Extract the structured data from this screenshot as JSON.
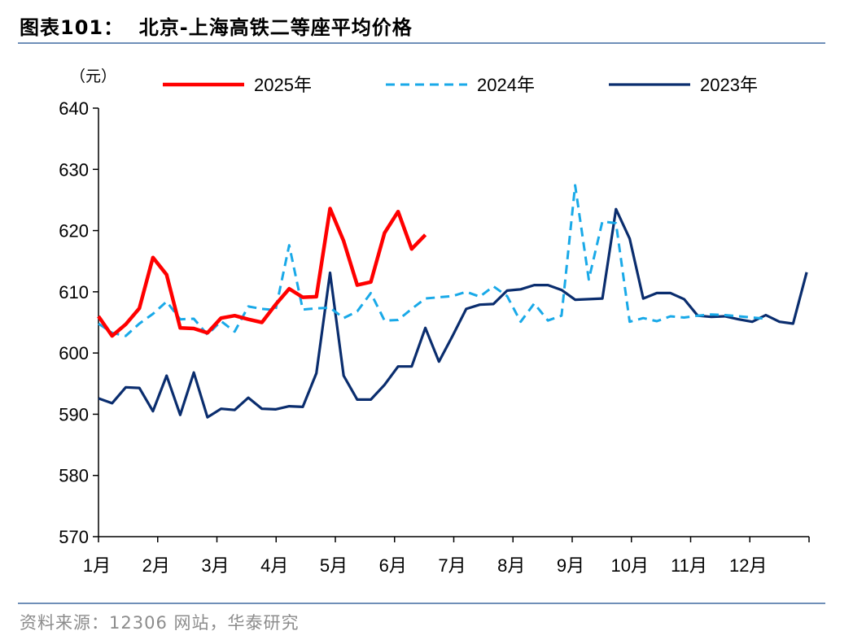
{
  "figure": {
    "title": "图表101：  北京-上海高铁二等座平均价格",
    "source": "资料来源：12306 网站，华泰研究"
  },
  "chart_data": {
    "type": "line",
    "unit_label": "（元）",
    "ylim": [
      570,
      640
    ],
    "yticks": [
      570,
      580,
      590,
      600,
      610,
      620,
      630,
      640
    ],
    "xlim": [
      0,
      12
    ],
    "x_ticks": [
      0,
      1,
      2,
      3,
      4,
      5,
      6,
      7,
      8,
      9,
      10,
      11,
      12
    ],
    "x_tick_labels": [
      "1月",
      "2月",
      "3月",
      "4月",
      "5月",
      "6月",
      "7月",
      "8月",
      "9月",
      "10月",
      "11月",
      "12月"
    ],
    "grid": false,
    "legend_position": "top",
    "series": [
      {
        "name": "2025年",
        "color": "#ff0000",
        "style": "solid",
        "x": [
          0.0,
          0.23,
          0.46,
          0.69,
          0.92,
          1.15,
          1.38,
          1.61,
          1.84,
          2.07,
          2.3,
          2.53,
          2.76,
          2.99,
          3.22,
          3.45,
          3.68,
          3.91,
          4.14,
          4.37,
          4.6,
          4.83,
          5.06,
          5.29,
          5.52,
          5.75,
          5.98
        ],
        "values": [
          606.0,
          602.8,
          604.7,
          607.3,
          615.6,
          612.8,
          604.1,
          604.0,
          603.3,
          605.7,
          606.1,
          605.5,
          605.0,
          607.9,
          610.5,
          609.1,
          609.2,
          623.6,
          618.3,
          611.1,
          611.6,
          619.6,
          623.1,
          617.0,
          619.3,
          null,
          null
        ]
      },
      {
        "name": "2024年",
        "color": "#19a9e8",
        "style": "dashed",
        "x": [
          0.0,
          0.23,
          0.46,
          0.69,
          0.92,
          1.15,
          1.38,
          1.61,
          1.84,
          2.07,
          2.3,
          2.53,
          2.76,
          2.99,
          3.22,
          3.45,
          3.68,
          3.91,
          4.14,
          4.37,
          4.6,
          4.83,
          5.06,
          5.29,
          5.52,
          5.75,
          5.98,
          6.21,
          6.44,
          6.67,
          6.9,
          7.13,
          7.36,
          7.59,
          7.82,
          8.05,
          8.28,
          8.51,
          8.74,
          8.97,
          9.2,
          9.43,
          9.66,
          9.89,
          10.12,
          10.35,
          10.58,
          10.81,
          11.04,
          11.27,
          11.5,
          11.73,
          11.96
        ],
        "values": [
          604.8,
          603.3,
          602.8,
          604.8,
          606.4,
          608.4,
          605.5,
          605.6,
          603.0,
          605.2,
          603.5,
          607.6,
          607.2,
          607.0,
          617.6,
          607.1,
          607.3,
          607.4,
          605.7,
          606.8,
          609.8,
          605.3,
          605.4,
          607.2,
          608.9,
          609.1,
          609.3,
          610.0,
          609.2,
          610.9,
          609.3,
          605.1,
          608.1,
          605.3,
          606.1,
          627.4,
          612.0,
          621.5,
          621.2,
          605.1,
          605.7,
          605.2,
          606.0,
          605.8,
          606.1,
          606.3,
          606.2,
          606.0,
          605.8,
          605.6,
          null,
          null,
          null
        ]
      },
      {
        "name": "2023年",
        "color": "#0a2d6e",
        "style": "solid",
        "x": [
          0.0,
          0.23,
          0.46,
          0.69,
          0.92,
          1.15,
          1.38,
          1.61,
          1.84,
          2.07,
          2.3,
          2.53,
          2.76,
          2.99,
          3.22,
          3.45,
          3.68,
          3.91,
          4.14,
          4.37,
          4.6,
          4.83,
          5.06,
          5.29,
          5.52,
          5.75,
          5.98,
          6.21,
          6.44,
          6.67,
          6.9,
          7.13,
          7.36,
          7.59,
          7.82,
          8.05,
          8.28,
          8.51,
          8.74,
          8.97,
          9.2,
          9.43,
          9.66,
          9.89,
          10.12,
          10.35,
          10.58,
          10.81,
          11.04,
          11.27,
          11.5,
          11.73,
          11.96
        ],
        "values": [
          592.6,
          591.8,
          594.4,
          594.3,
          590.5,
          596.3,
          589.9,
          596.8,
          589.5,
          590.9,
          590.7,
          592.7,
          590.9,
          590.8,
          591.3,
          591.2,
          596.7,
          613.1,
          596.3,
          592.4,
          592.4,
          594.8,
          597.8,
          597.8,
          604.1,
          598.6,
          602.8,
          607.2,
          607.9,
          608.0,
          610.2,
          610.4,
          611.1,
          611.1,
          610.3,
          608.7,
          608.8,
          608.9,
          623.5,
          618.7,
          608.9,
          609.8,
          609.8,
          608.8,
          606.1,
          605.9,
          606.0,
          605.5,
          605.1,
          606.2,
          605.1,
          604.8,
          613.2
        ]
      }
    ]
  }
}
